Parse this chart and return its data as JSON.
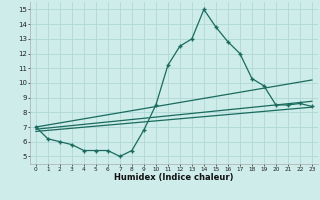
{
  "xlabel": "Humidex (Indice chaleur)",
  "bg_color": "#cdecea",
  "grid_color": "#b0d8d6",
  "line_color": "#1a6b5e",
  "xlim": [
    -0.5,
    23.5
  ],
  "ylim": [
    4.5,
    15.5
  ],
  "xticks": [
    0,
    1,
    2,
    3,
    4,
    5,
    6,
    7,
    8,
    9,
    10,
    11,
    12,
    13,
    14,
    15,
    16,
    17,
    18,
    19,
    20,
    21,
    22,
    23
  ],
  "yticks": [
    5,
    6,
    7,
    8,
    9,
    10,
    11,
    12,
    13,
    14,
    15
  ],
  "main_x": [
    0,
    1,
    2,
    3,
    4,
    5,
    6,
    7,
    8,
    9,
    10,
    11,
    12,
    13,
    14,
    15,
    16,
    17,
    18,
    19,
    20,
    21,
    22,
    23
  ],
  "main_y": [
    7.0,
    6.2,
    6.0,
    5.8,
    5.4,
    5.4,
    5.4,
    5.0,
    5.4,
    6.8,
    8.5,
    11.2,
    12.5,
    13.0,
    15.0,
    13.8,
    12.8,
    12.0,
    10.3,
    9.8,
    8.5,
    8.5,
    8.6,
    8.4
  ],
  "trend1_start_y": 7.0,
  "trend1_end_y": 10.2,
  "trend2_start_y": 6.85,
  "trend2_end_y": 8.75,
  "trend3_start_y": 6.7,
  "trend3_end_y": 8.35,
  "xlabel_fontsize": 6,
  "tick_fontsize": 5
}
